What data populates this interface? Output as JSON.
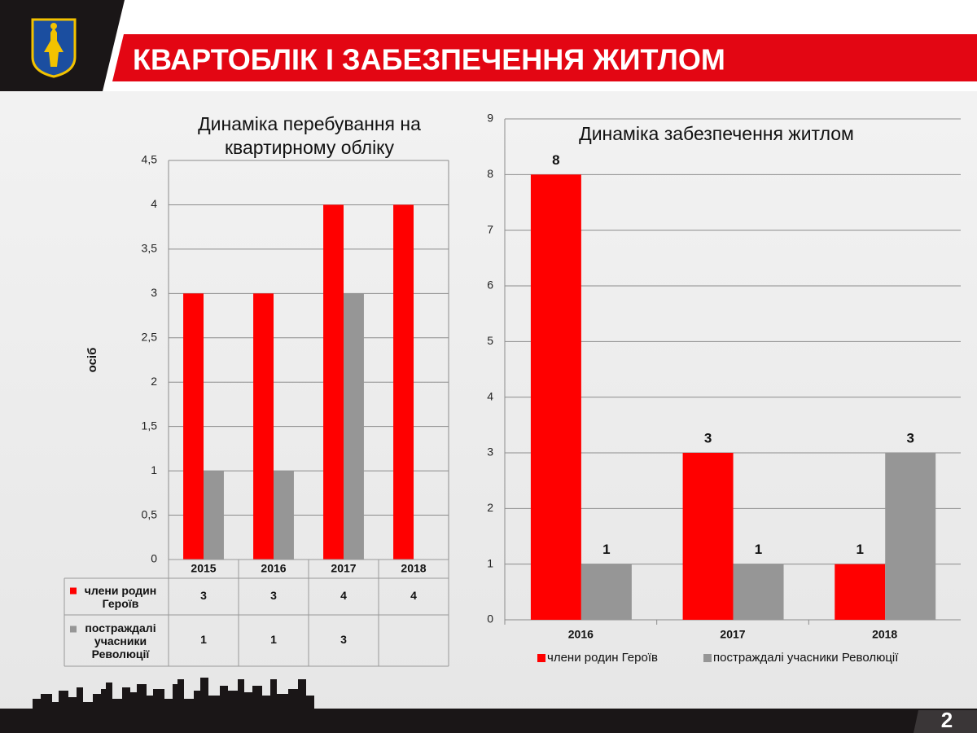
{
  "header": {
    "title": "КВАРТОБЛІК І ЗАБЕЗПЕЧЕННЯ ЖИТЛОМ",
    "page_number": "2"
  },
  "chart_data": [
    {
      "type": "bar",
      "title": "Динаміка перебування на квартирному обліку",
      "y_label": "осіб",
      "categories": [
        "2015",
        "2016",
        "2017",
        "2018"
      ],
      "series": [
        {
          "name": "члени родин Героїв",
          "color": "#ff0000",
          "values": [
            3,
            3,
            4,
            4
          ]
        },
        {
          "name": "постраждалі учасники Революції",
          "color": "#969696",
          "values": [
            1,
            1,
            3,
            null
          ]
        }
      ],
      "ylim": [
        0,
        4.5
      ],
      "yticks": [
        0,
        {
          "value": 0.5,
          "label": "0,5"
        },
        1,
        {
          "value": 1.5,
          "label": "1,5"
        },
        2,
        {
          "value": 2.5,
          "label": "2,5"
        },
        3,
        {
          "value": 3.5,
          "label": "3,5"
        },
        4,
        {
          "value": 4.5,
          "label": "4,5"
        }
      ],
      "grid": true,
      "data_table": true
    },
    {
      "type": "bar",
      "title": "Динаміка забезпечення житлом",
      "categories": [
        "2016",
        "2017",
        "2018"
      ],
      "series": [
        {
          "name": "члени родин Героїв",
          "color": "#ff0000",
          "values": [
            8,
            3,
            1
          ]
        },
        {
          "name": "постраждалі учасники Революції",
          "color": "#969696",
          "values": [
            1,
            1,
            3
          ]
        }
      ],
      "ylim": [
        0,
        9
      ],
      "yticks": [
        0,
        1,
        2,
        3,
        4,
        5,
        6,
        7,
        8,
        9
      ],
      "grid": true,
      "data_labels": true,
      "legend": "bottom"
    }
  ]
}
